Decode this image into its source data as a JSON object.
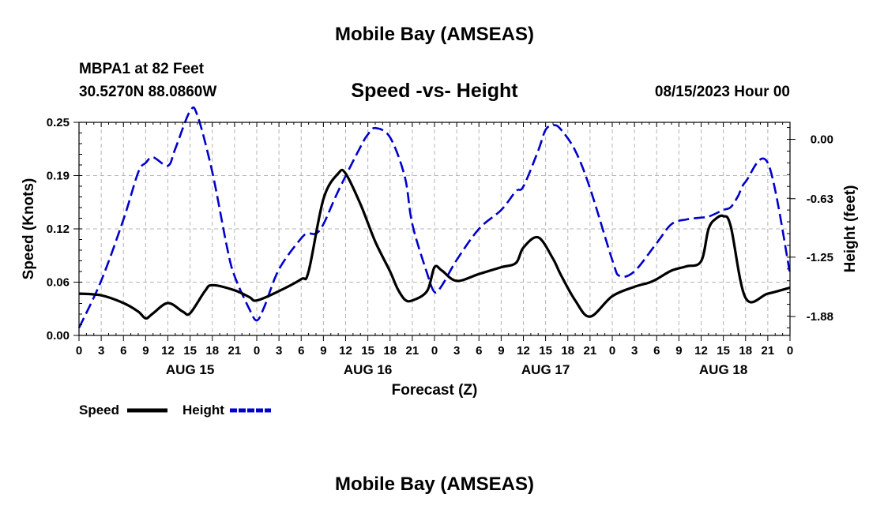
{
  "header": {
    "title": "Mobile Bay (AMSEAS)",
    "station": "MBPA1 at 82 Feet",
    "coords": "30.5270N  88.0860W",
    "subtitle": "Speed -vs- Height",
    "datetime": "08/15/2023 Hour 00",
    "bottom_title": "Mobile Bay (AMSEAS)"
  },
  "colors": {
    "speed": "#000000",
    "height": "#0000cc",
    "grid": "#b4b4b4"
  },
  "chart_data": {
    "type": "line",
    "title": "Speed -vs- Height",
    "xlabel": "Forecast (Z)",
    "ylabel": "Speed (Knots)",
    "y2label": "Height (feet)",
    "x_tick_labels": [
      "0",
      "3",
      "6",
      "9",
      "12",
      "15",
      "18",
      "21",
      "0",
      "3",
      "6",
      "9",
      "12",
      "15",
      "18",
      "21",
      "0",
      "3",
      "6",
      "9",
      "12",
      "15",
      "18",
      "21",
      "0",
      "3",
      "6",
      "9",
      "12",
      "15",
      "18",
      "21",
      "0"
    ],
    "date_labels": [
      {
        "label": "AUG 15",
        "hour": 15
      },
      {
        "label": "AUG 16",
        "hour": 39
      },
      {
        "label": "AUG 17",
        "hour": 63
      },
      {
        "label": "AUG 18",
        "hour": 87
      }
    ],
    "xlim": [
      0,
      96
    ],
    "ylim": [
      0,
      0.25
    ],
    "y_ticks": [
      "0.00",
      "0.06",
      "0.12",
      "0.19",
      "0.25"
    ],
    "y_tick_values": [
      0,
      0.0625,
      0.125,
      0.1875,
      0.25
    ],
    "y2lim": [
      -2.08,
      0.18
    ],
    "y2_ticks": [
      "0.00",
      "-0.63",
      "-1.25",
      "-1.88"
    ],
    "y2_tick_values": [
      0,
      -0.63,
      -1.25,
      -1.88
    ],
    "grid": true,
    "legend": "bottom-left",
    "series": [
      {
        "name": "Speed",
        "axis": "left",
        "style": "solid",
        "x": [
          0,
          3,
          6,
          8,
          9,
          10,
          12,
          14,
          15,
          17,
          18,
          21,
          23,
          24,
          27,
          30,
          31,
          33,
          35,
          36,
          38,
          40,
          42,
          43,
          44,
          45,
          47,
          48,
          49,
          51,
          54,
          57,
          59,
          60,
          62,
          64,
          65,
          67,
          69,
          72,
          75,
          77,
          78,
          80,
          82,
          84,
          85,
          86,
          87,
          88,
          90,
          93,
          96
        ],
        "y": [
          0.049,
          0.047,
          0.038,
          0.028,
          0.02,
          0.026,
          0.038,
          0.028,
          0.026,
          0.052,
          0.059,
          0.053,
          0.045,
          0.041,
          0.052,
          0.066,
          0.075,
          0.16,
          0.19,
          0.19,
          0.154,
          0.11,
          0.075,
          0.055,
          0.042,
          0.041,
          0.052,
          0.08,
          0.076,
          0.064,
          0.072,
          0.08,
          0.085,
          0.103,
          0.115,
          0.09,
          0.072,
          0.041,
          0.022,
          0.046,
          0.057,
          0.062,
          0.066,
          0.076,
          0.081,
          0.087,
          0.125,
          0.137,
          0.14,
          0.128,
          0.044,
          0.049,
          0.056
        ],
        "color": "#000000"
      },
      {
        "name": "Height",
        "axis": "right",
        "style": "dashed",
        "x": [
          0,
          3,
          6,
          8,
          9,
          10,
          12,
          13,
          15,
          16,
          18,
          20,
          21,
          23,
          24,
          25,
          27,
          30,
          31,
          32,
          33,
          35,
          38,
          39,
          40,
          42,
          44,
          45,
          47,
          48,
          49,
          51,
          54,
          57,
          59,
          60,
          62,
          63,
          64,
          65,
          67,
          69,
          72,
          73,
          75,
          78,
          80,
          82,
          84,
          85,
          87,
          88,
          89,
          90,
          93,
          96
        ],
        "y": [
          -2.0,
          -1.5,
          -0.85,
          -0.35,
          -0.25,
          -0.19,
          -0.28,
          -0.1,
          0.3,
          0.25,
          -0.35,
          -1.15,
          -1.45,
          -1.8,
          -1.92,
          -1.78,
          -1.38,
          -1.05,
          -1.0,
          -1.0,
          -0.9,
          -0.55,
          -0.08,
          0.05,
          0.12,
          0.02,
          -0.4,
          -0.9,
          -1.42,
          -1.62,
          -1.55,
          -1.28,
          -0.95,
          -0.75,
          -0.55,
          -0.5,
          -0.12,
          0.1,
          0.15,
          0.11,
          -0.12,
          -0.52,
          -1.28,
          -1.45,
          -1.4,
          -1.1,
          -0.9,
          -0.85,
          -0.83,
          -0.82,
          -0.75,
          -0.72,
          -0.6,
          -0.45,
          -0.25,
          -1.42
        ],
        "color": "#0000cc"
      }
    ]
  },
  "legend": {
    "speed_label": "Speed",
    "height_label": "Height"
  }
}
